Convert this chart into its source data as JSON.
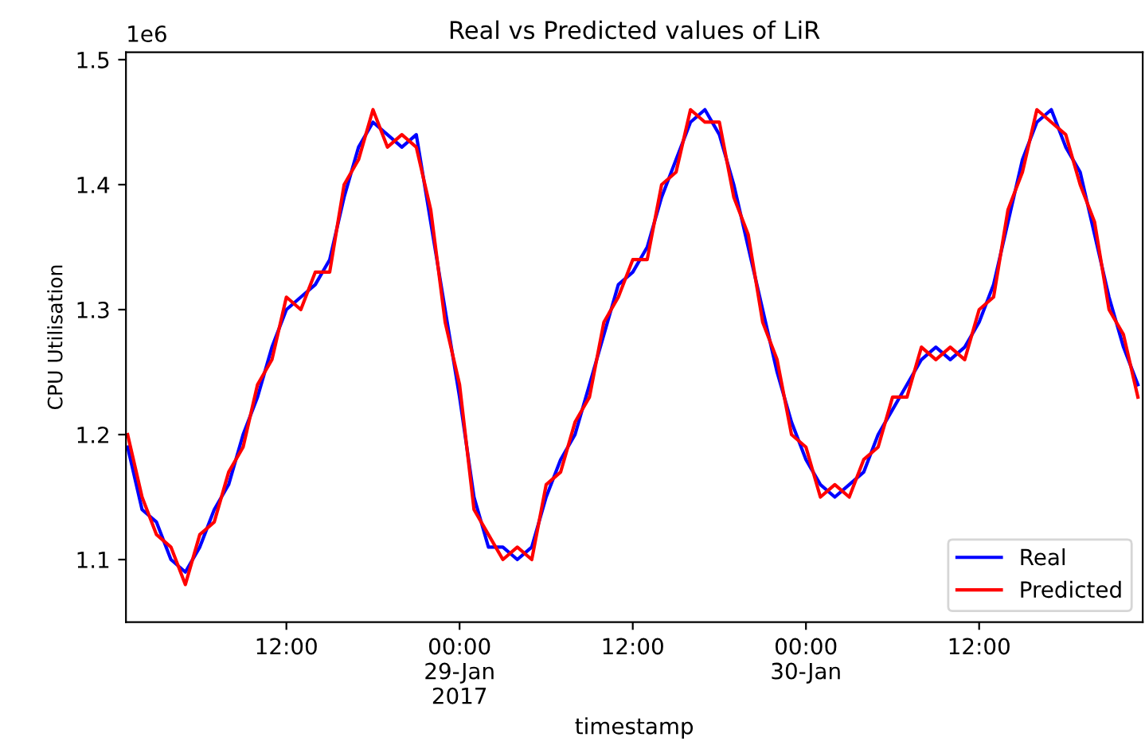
{
  "chart_data": {
    "type": "line",
    "title": "Real vs Predicted values of LiR",
    "xlabel": "timestamp",
    "ylabel": "CPU Utilisation",
    "annotations": [
      "1e6"
    ],
    "x": [
      "2017-01-28T01:00",
      "2017-01-28T02:00",
      "2017-01-28T03:00",
      "2017-01-28T04:00",
      "2017-01-28T05:00",
      "2017-01-28T06:00",
      "2017-01-28T07:00",
      "2017-01-28T08:00",
      "2017-01-28T09:00",
      "2017-01-28T10:00",
      "2017-01-28T11:00",
      "2017-01-28T12:00",
      "2017-01-28T13:00",
      "2017-01-28T14:00",
      "2017-01-28T15:00",
      "2017-01-28T16:00",
      "2017-01-28T17:00",
      "2017-01-28T18:00",
      "2017-01-28T19:00",
      "2017-01-28T20:00",
      "2017-01-28T21:00",
      "2017-01-28T22:00",
      "2017-01-28T23:00",
      "2017-01-29T00:00",
      "2017-01-29T01:00",
      "2017-01-29T02:00",
      "2017-01-29T03:00",
      "2017-01-29T04:00",
      "2017-01-29T05:00",
      "2017-01-29T06:00",
      "2017-01-29T07:00",
      "2017-01-29T08:00",
      "2017-01-29T09:00",
      "2017-01-29T10:00",
      "2017-01-29T11:00",
      "2017-01-29T12:00",
      "2017-01-29T13:00",
      "2017-01-29T14:00",
      "2017-01-29T15:00",
      "2017-01-29T16:00",
      "2017-01-29T17:00",
      "2017-01-29T18:00",
      "2017-01-29T19:00",
      "2017-01-29T20:00",
      "2017-01-29T21:00",
      "2017-01-29T22:00",
      "2017-01-29T23:00",
      "2017-01-30T00:00",
      "2017-01-30T01:00",
      "2017-01-30T02:00",
      "2017-01-30T03:00",
      "2017-01-30T04:00",
      "2017-01-30T05:00",
      "2017-01-30T06:00",
      "2017-01-30T07:00",
      "2017-01-30T08:00",
      "2017-01-30T09:00",
      "2017-01-30T10:00",
      "2017-01-30T11:00",
      "2017-01-30T12:00",
      "2017-01-30T13:00",
      "2017-01-30T14:00",
      "2017-01-30T15:00",
      "2017-01-30T16:00",
      "2017-01-30T17:00",
      "2017-01-30T18:00",
      "2017-01-30T19:00",
      "2017-01-30T20:00",
      "2017-01-30T21:00",
      "2017-01-30T22:00",
      "2017-01-30T23:00"
    ],
    "series": [
      {
        "name": "Real",
        "color": "#0000ff",
        "values": [
          1.19,
          1.14,
          1.13,
          1.1,
          1.09,
          1.11,
          1.14,
          1.16,
          1.2,
          1.23,
          1.27,
          1.3,
          1.31,
          1.32,
          1.34,
          1.39,
          1.43,
          1.45,
          1.44,
          1.43,
          1.44,
          1.37,
          1.3,
          1.23,
          1.15,
          1.11,
          1.11,
          1.1,
          1.11,
          1.15,
          1.18,
          1.2,
          1.24,
          1.28,
          1.32,
          1.33,
          1.35,
          1.39,
          1.42,
          1.45,
          1.46,
          1.44,
          1.4,
          1.35,
          1.3,
          1.25,
          1.21,
          1.18,
          1.16,
          1.15,
          1.16,
          1.17,
          1.2,
          1.22,
          1.24,
          1.26,
          1.27,
          1.26,
          1.27,
          1.29,
          1.32,
          1.37,
          1.42,
          1.45,
          1.46,
          1.43,
          1.41,
          1.36,
          1.31,
          1.27,
          1.24
        ]
      },
      {
        "name": "Predicted",
        "color": "#ff0000",
        "values": [
          1.2,
          1.15,
          1.12,
          1.11,
          1.08,
          1.12,
          1.13,
          1.17,
          1.19,
          1.24,
          1.26,
          1.31,
          1.3,
          1.33,
          1.33,
          1.4,
          1.42,
          1.46,
          1.43,
          1.44,
          1.43,
          1.38,
          1.29,
          1.24,
          1.14,
          1.12,
          1.1,
          1.11,
          1.1,
          1.16,
          1.17,
          1.21,
          1.23,
          1.29,
          1.31,
          1.34,
          1.34,
          1.4,
          1.41,
          1.46,
          1.45,
          1.45,
          1.39,
          1.36,
          1.29,
          1.26,
          1.2,
          1.19,
          1.15,
          1.16,
          1.15,
          1.18,
          1.19,
          1.23,
          1.23,
          1.27,
          1.26,
          1.27,
          1.26,
          1.3,
          1.31,
          1.38,
          1.41,
          1.46,
          1.45,
          1.44,
          1.4,
          1.37,
          1.3,
          1.28,
          1.23
        ]
      }
    ],
    "xlim": [
      "2017-01-28T00:53",
      "2017-01-30T23:20"
    ],
    "xticks": [
      {
        "value": "2017-01-28T12:00",
        "label": "12:00"
      },
      {
        "value": "2017-01-29T00:00",
        "label": "00:00\n29-Jan\n2017"
      },
      {
        "value": "2017-01-29T12:00",
        "label": "12:00"
      },
      {
        "value": "2017-01-30T00:00",
        "label": "00:00\n30-Jan"
      },
      {
        "value": "2017-01-30T12:00",
        "label": "12:00"
      }
    ],
    "ylim": [
      1.05,
      1.506
    ],
    "yticks": [
      1.1,
      1.2,
      1.3,
      1.4,
      1.5
    ],
    "legend": "bottom right",
    "line_style": "solid"
  }
}
